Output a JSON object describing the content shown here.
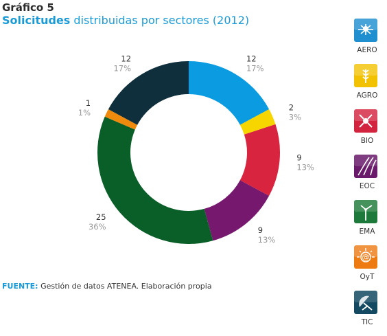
{
  "header": {
    "figure_number": "Gráfico 5",
    "title_bold": "Solicitudes",
    "title_rest": "distribuidas por sectores (2012)"
  },
  "footer": {
    "source_label": "FUENTE:",
    "source_text": "Gestión de datos ATENEA. Elaboración propia"
  },
  "chart_data": {
    "type": "pie",
    "variant": "donut",
    "categories": [
      "AERO",
      "AGRO",
      "BIO",
      "EOC",
      "EMA",
      "OyT",
      "TIC"
    ],
    "values": [
      12,
      2,
      9,
      9,
      25,
      1,
      12
    ],
    "percent_labels": [
      "17%",
      "3%",
      "13%",
      "13%",
      "36%",
      "1%",
      "17%"
    ],
    "colors": [
      "#0a9be0",
      "#f7d600",
      "#d8243e",
      "#76196e",
      "#0a5e28",
      "#ef8a0c",
      "#0f2f3c"
    ],
    "legend_placement": "right"
  },
  "legend": {
    "items": [
      {
        "label": "AERO",
        "color": "#1f8fd0",
        "icon": "airplane-icon"
      },
      {
        "label": "AGRO",
        "color": "#f2c200",
        "icon": "wheat-icon"
      },
      {
        "label": "BIO",
        "color": "#d3243f",
        "icon": "molecule-icon"
      },
      {
        "label": "EOC",
        "color": "#6a1a6a",
        "icon": "road-icon"
      },
      {
        "label": "EMA",
        "color": "#1d7a3a",
        "icon": "wind-turbine-icon"
      },
      {
        "label": "OyT",
        "color": "#ee7a12",
        "icon": "at-sign-icon"
      },
      {
        "label": "TIC",
        "color": "#134a62",
        "icon": "satellite-dish-icon"
      }
    ]
  }
}
